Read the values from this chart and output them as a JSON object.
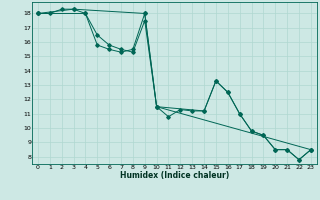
{
  "xlabel": "Humidex (Indice chaleur)",
  "bg_color": "#cde8e4",
  "grid_color": "#b0d8d0",
  "line_color": "#006655",
  "xlim": [
    -0.5,
    23.5
  ],
  "ylim": [
    7.5,
    18.8
  ],
  "yticks": [
    8,
    9,
    10,
    11,
    12,
    13,
    14,
    15,
    16,
    17,
    18
  ],
  "xticks": [
    0,
    1,
    2,
    3,
    4,
    5,
    6,
    7,
    8,
    9,
    10,
    11,
    12,
    13,
    14,
    15,
    16,
    17,
    18,
    19,
    20,
    21,
    22,
    23
  ],
  "series1": [
    [
      0,
      18.0
    ],
    [
      1,
      18.0
    ],
    [
      2,
      18.3
    ],
    [
      3,
      18.3
    ],
    [
      4,
      18.0
    ],
    [
      5,
      15.8
    ],
    [
      6,
      15.5
    ],
    [
      7,
      15.3
    ],
    [
      8,
      15.5
    ],
    [
      9,
      18.0
    ],
    [
      10,
      11.5
    ],
    [
      11,
      10.8
    ],
    [
      12,
      11.3
    ],
    [
      13,
      11.2
    ],
    [
      14,
      11.2
    ],
    [
      15,
      13.3
    ],
    [
      16,
      12.5
    ],
    [
      17,
      11.0
    ],
    [
      18,
      9.8
    ],
    [
      19,
      9.5
    ],
    [
      20,
      8.5
    ],
    [
      21,
      8.5
    ],
    [
      22,
      7.8
    ],
    [
      23,
      8.5
    ]
  ],
  "series2": [
    [
      0,
      18.0
    ],
    [
      3,
      18.3
    ],
    [
      9,
      18.0
    ],
    [
      10,
      11.5
    ],
    [
      23,
      8.5
    ]
  ],
  "series3": [
    [
      0,
      18.0
    ],
    [
      4,
      18.0
    ],
    [
      5,
      16.5
    ],
    [
      6,
      15.8
    ],
    [
      7,
      15.5
    ],
    [
      8,
      15.3
    ],
    [
      9,
      17.5
    ],
    [
      10,
      11.5
    ],
    [
      14,
      11.2
    ],
    [
      15,
      13.3
    ],
    [
      16,
      12.5
    ],
    [
      17,
      11.0
    ],
    [
      18,
      9.8
    ],
    [
      19,
      9.5
    ],
    [
      20,
      8.5
    ],
    [
      21,
      8.5
    ],
    [
      22,
      7.8
    ],
    [
      23,
      8.5
    ]
  ]
}
